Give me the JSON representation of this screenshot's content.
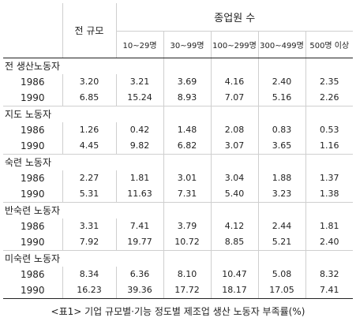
{
  "table": {
    "header": {
      "size_label": "전 규모",
      "employee_label": "종업원 수",
      "columns": [
        "10~29명",
        "30~99명",
        "100~299명",
        "300~499명",
        "500명 이상"
      ]
    },
    "groups": [
      {
        "name": "전 생산노동자",
        "rows": [
          {
            "year": "1986",
            "values": [
              "3.20",
              "3.21",
              "3.69",
              "4.16",
              "2.40",
              "2.35"
            ]
          },
          {
            "year": "1990",
            "values": [
              "6.85",
              "15.24",
              "8.93",
              "7.07",
              "5.16",
              "2.26"
            ]
          }
        ]
      },
      {
        "name": "지도 노동자",
        "rows": [
          {
            "year": "1986",
            "values": [
              "1.26",
              "0.42",
              "1.48",
              "2.08",
              "0.83",
              "0.53"
            ]
          },
          {
            "year": "1990",
            "values": [
              "4.45",
              "9.82",
              "6.82",
              "3.07",
              "3.65",
              "1.16"
            ]
          }
        ]
      },
      {
        "name": "숙련 노동자",
        "rows": [
          {
            "year": "1986",
            "values": [
              "2.27",
              "1.81",
              "3.01",
              "3.04",
              "1.88",
              "1.37"
            ]
          },
          {
            "year": "1990",
            "values": [
              "5.31",
              "11.63",
              "7.31",
              "5.40",
              "3.23",
              "1.38"
            ]
          }
        ]
      },
      {
        "name": "반숙련 노동자",
        "rows": [
          {
            "year": "1986",
            "values": [
              "3.31",
              "7.41",
              "3.79",
              "4.12",
              "2.44",
              "1.81"
            ]
          },
          {
            "year": "1990",
            "values": [
              "7.92",
              "19.77",
              "10.72",
              "8.85",
              "5.21",
              "2.40"
            ]
          }
        ]
      },
      {
        "name": "미숙련 노동자",
        "rows": [
          {
            "year": "1986",
            "values": [
              "8.34",
              "6.36",
              "8.10",
              "10.47",
              "5.08",
              "8.32"
            ]
          },
          {
            "year": "1990",
            "values": [
              "16.23",
              "39.36",
              "17.72",
              "18.17",
              "17.05",
              "7.41"
            ]
          }
        ]
      }
    ]
  },
  "caption": "<표1> 기업 규모별·기능 정도별 제조업 생산 노동자 부족률(%)"
}
